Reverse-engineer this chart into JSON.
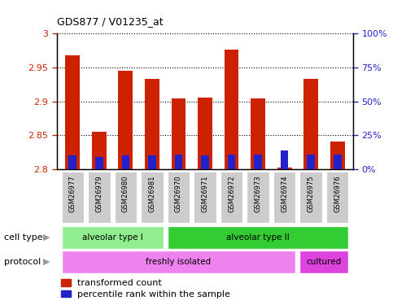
{
  "title": "GDS877 / V01235_at",
  "samples": [
    "GSM26977",
    "GSM26979",
    "GSM26980",
    "GSM26981",
    "GSM26970",
    "GSM26971",
    "GSM26972",
    "GSM26973",
    "GSM26974",
    "GSM26975",
    "GSM26976"
  ],
  "red_values": [
    2.968,
    2.855,
    2.945,
    2.933,
    2.905,
    2.906,
    2.976,
    2.905,
    2.802,
    2.933,
    2.841
  ],
  "blue_values_pct": [
    10,
    9,
    10,
    10,
    11,
    10,
    11,
    11,
    14,
    11,
    11
  ],
  "ymin": 2.8,
  "ymax": 3.0,
  "yticks": [
    2.8,
    2.85,
    2.9,
    2.95,
    3.0
  ],
  "ytick_labels": [
    "2.8",
    "2.85",
    "2.9",
    "2.95",
    "3"
  ],
  "y2ticks_pct": [
    0,
    25,
    50,
    75,
    100
  ],
  "y2tick_labels": [
    "0%",
    "25%",
    "50%",
    "75%",
    "100%"
  ],
  "cell_type_groups": [
    {
      "label": "alveolar type I",
      "start": 0,
      "end": 3,
      "color": "#90EE90"
    },
    {
      "label": "alveolar type II",
      "start": 4,
      "end": 10,
      "color": "#33CC33"
    }
  ],
  "protocol_groups": [
    {
      "label": "freshly isolated",
      "start": 0,
      "end": 8,
      "color": "#EE82EE"
    },
    {
      "label": "cultured",
      "start": 9,
      "end": 10,
      "color": "#DD44DD"
    }
  ],
  "bar_color_red": "#CC2200",
  "bar_color_blue": "#2222CC",
  "bar_width": 0.55,
  "legend_red": "transformed count",
  "legend_blue": "percentile rank within the sample",
  "tick_color_left": "#CC2200",
  "tick_color_right": "#2222CC",
  "grid_color": "#000000",
  "spine_color": "#000000",
  "sample_label_bg": "#CCCCCC",
  "left_label_color": "#555555"
}
